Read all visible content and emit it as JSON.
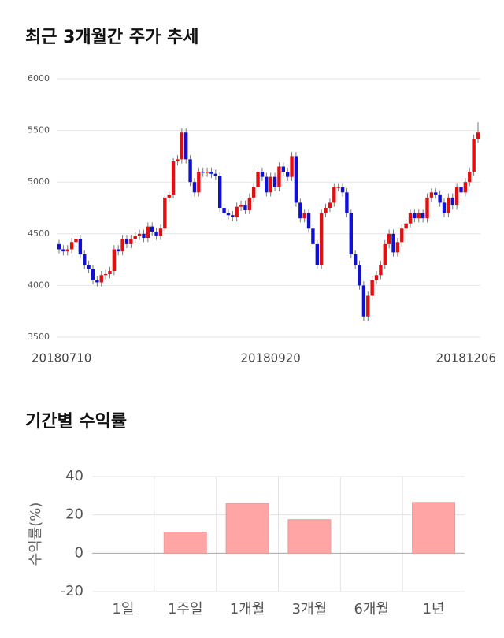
{
  "chart_data": [
    {
      "type": "candlestick",
      "title": "최근 3개월간 주가 추세",
      "categories": [
        "20180710",
        null,
        null,
        null,
        null,
        null,
        null,
        null,
        null,
        null,
        null,
        null,
        null,
        null,
        null,
        null,
        null,
        null,
        null,
        null,
        null,
        null,
        null,
        null,
        null,
        null,
        null,
        null,
        null,
        null,
        null,
        null,
        null,
        null,
        null,
        null,
        null,
        null,
        null,
        null,
        null,
        null,
        null,
        null,
        null,
        null,
        null,
        null,
        null,
        null,
        "20180920",
        null,
        null,
        null,
        null,
        null,
        null,
        null,
        null,
        null,
        null,
        null,
        null,
        null,
        null,
        null,
        null,
        null,
        null,
        null,
        null,
        null,
        null,
        null,
        null,
        null,
        null,
        null,
        null,
        null,
        null,
        null,
        null,
        null,
        null,
        null,
        null,
        null,
        null,
        null,
        null,
        null,
        null,
        null,
        null,
        null,
        null,
        null,
        null,
        "20181206"
      ],
      "open": [
        4400,
        4350,
        4330,
        4350,
        4420,
        4450,
        4300,
        4200,
        4160,
        4050,
        4030,
        4100,
        4110,
        4140,
        4350,
        4330,
        4450,
        4400,
        4450,
        4480,
        4500,
        4460,
        4570,
        4520,
        4480,
        4550,
        4850,
        4880,
        5200,
        5220,
        5480,
        5220,
        5000,
        4900,
        5100,
        5090,
        5100,
        5080,
        5060,
        4750,
        4700,
        4680,
        4660,
        4760,
        4780,
        4730,
        4850,
        4950,
        5100,
        5050,
        4900,
        5050,
        4950,
        5150,
        5100,
        5050,
        5250,
        4800,
        4650,
        4700,
        4550,
        4400,
        4200,
        4700,
        4750,
        4800,
        4950,
        4950,
        4900,
        4700,
        4300,
        4200,
        4000,
        3700,
        3900,
        4050,
        4100,
        4200,
        4400,
        4500,
        4320,
        4420,
        4550,
        4600,
        4700,
        4650,
        4700,
        4650,
        4850,
        4900,
        4880,
        4800,
        4700,
        4850,
        4780,
        4950,
        4900,
        5000,
        5100,
        5420
      ],
      "high": [
        4440,
        4390,
        4390,
        4460,
        4490,
        4490,
        4340,
        4240,
        4200,
        4090,
        4140,
        4150,
        4180,
        4390,
        4390,
        4490,
        4490,
        4490,
        4520,
        4540,
        4540,
        4610,
        4610,
        4560,
        4590,
        4890,
        4920,
        5240,
        5260,
        5520,
        5520,
        5260,
        5040,
        5140,
        5140,
        5140,
        5140,
        5120,
        5100,
        4790,
        4740,
        4720,
        4800,
        4820,
        4820,
        4890,
        4990,
        5140,
        5140,
        5090,
        5090,
        5090,
        5190,
        5190,
        5140,
        5290,
        5290,
        4840,
        4740,
        4740,
        4590,
        4440,
        4740,
        4790,
        4840,
        4990,
        4990,
        4990,
        4940,
        4740,
        4340,
        4240,
        4040,
        3940,
        4090,
        4140,
        4240,
        4440,
        4540,
        4540,
        4460,
        4590,
        4640,
        4740,
        4740,
        4740,
        4740,
        4890,
        4940,
        4940,
        4920,
        4840,
        4890,
        4890,
        4990,
        4990,
        5040,
        5140,
        5460,
        5580
      ],
      "low": [
        4310,
        4290,
        4290,
        4310,
        4380,
        4260,
        4160,
        4120,
        4010,
        3990,
        3990,
        4060,
        4070,
        4100,
        4290,
        4290,
        4360,
        4360,
        4410,
        4440,
        4420,
        4420,
        4480,
        4440,
        4440,
        4510,
        4810,
        4840,
        5160,
        5180,
        5180,
        4960,
        4860,
        4860,
        5050,
        5050,
        5040,
        5020,
        4710,
        4660,
        4640,
        4620,
        4620,
        4720,
        4690,
        4690,
        4810,
        4910,
        5010,
        4860,
        4860,
        4910,
        4910,
        5060,
        5010,
        5010,
        4760,
        4610,
        4610,
        4510,
        4360,
        4160,
        4160,
        4660,
        4710,
        4760,
        4910,
        4860,
        4660,
        4260,
        4160,
        3960,
        3660,
        3660,
        3860,
        4010,
        4060,
        4160,
        4360,
        4280,
        4280,
        4380,
        4510,
        4560,
        4610,
        4610,
        4610,
        4610,
        4810,
        4840,
        4760,
        4660,
        4660,
        4740,
        4740,
        4860,
        4860,
        4960,
        5060,
        5380
      ],
      "close": [
        4350,
        4330,
        4350,
        4420,
        4450,
        4300,
        4200,
        4160,
        4050,
        4030,
        4100,
        4110,
        4140,
        4350,
        4330,
        4450,
        4400,
        4450,
        4480,
        4500,
        4460,
        4570,
        4520,
        4480,
        4550,
        4850,
        4880,
        5200,
        5220,
        5480,
        5220,
        5000,
        4900,
        5100,
        5090,
        5100,
        5080,
        5060,
        4750,
        4700,
        4680,
        4660,
        4760,
        4780,
        4730,
        4850,
        4950,
        5100,
        5050,
        4900,
        5050,
        4950,
        5150,
        5100,
        5050,
        5250,
        4800,
        4650,
        4700,
        4550,
        4400,
        4200,
        4700,
        4750,
        4800,
        4950,
        4950,
        4900,
        4700,
        4300,
        4200,
        4000,
        3700,
        3900,
        4050,
        4100,
        4200,
        4400,
        4500,
        4320,
        4420,
        4550,
        4600,
        4700,
        4650,
        4700,
        4650,
        4850,
        4900,
        4880,
        4800,
        4700,
        4850,
        4780,
        4950,
        4900,
        5000,
        5100,
        5420,
        5480
      ],
      "up_color": "#e01010",
      "down_color": "#1010d0",
      "ylim": [
        3500,
        6000
      ],
      "yticks": [
        3500,
        4000,
        4500,
        5000,
        5500,
        6000
      ],
      "grid": true
    },
    {
      "type": "bar",
      "title": "기간별 수익률",
      "y_label": "수익률(%)",
      "categories": [
        "1일",
        "1주일",
        "1개월",
        "3개월",
        "6개월",
        "1년"
      ],
      "values": [
        0,
        11,
        26,
        17.5,
        0,
        26.5
      ],
      "color": "#ffa5a5",
      "ylim": [
        -20,
        40
      ],
      "yticks": [
        -20,
        0,
        20,
        40
      ],
      "grid": true
    }
  ]
}
